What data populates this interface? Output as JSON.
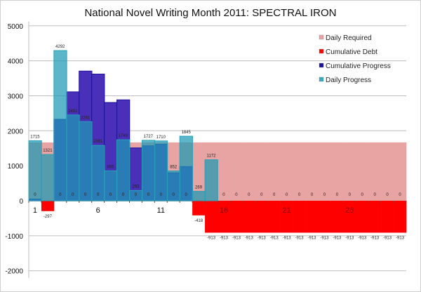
{
  "chart_data": {
    "type": "bar",
    "title": "National Novel Writing Month 2011: SPECTRAL IRON",
    "xlabel": "",
    "ylabel": "",
    "ylim": [
      -2000,
      5000
    ],
    "yticks": [
      -2000,
      -1000,
      0,
      1000,
      2000,
      3000,
      4000,
      5000
    ],
    "grid": true,
    "legend_position": "top-right",
    "categories": [
      1,
      2,
      3,
      4,
      5,
      6,
      7,
      8,
      9,
      10,
      11,
      12,
      13,
      14,
      15,
      16,
      17,
      18,
      19,
      20,
      21,
      22,
      23,
      24,
      25,
      26,
      27,
      28,
      29,
      30
    ],
    "xtick_labels": [
      "1",
      "6",
      "11",
      "16",
      "21",
      "26"
    ],
    "series": [
      {
        "name": "Daily Required",
        "color": "#e8a3a3",
        "values": [
          1667,
          1667,
          1667,
          1667,
          1667,
          1667,
          1667,
          1667,
          1667,
          1667,
          1667,
          1667,
          1667,
          1667,
          1667,
          1667,
          1667,
          1667,
          1667,
          1667,
          1667,
          1667,
          1667,
          1667,
          1667,
          1667,
          1667,
          1667,
          1667,
          1667
        ]
      },
      {
        "name": "Cumulative Debt",
        "color": "#ff0000",
        "values": [
          0,
          -297,
          0,
          0,
          0,
          0,
          0,
          0,
          0,
          0,
          0,
          0,
          0,
          -418,
          -913,
          -913,
          -913,
          -913,
          -913,
          -913,
          -913,
          -913,
          -913,
          -913,
          -913,
          -913,
          -913,
          -913,
          -913,
          -913
        ]
      },
      {
        "name": "Cumulative Progress",
        "color": "#1a0f9a",
        "values": [
          48,
          0,
          2328,
          3112,
          3706,
          3620,
          2808,
          2884,
          1510,
          1570,
          1613,
          798,
          976,
          0,
          0,
          0,
          0,
          0,
          0,
          0,
          0,
          0,
          0,
          0,
          0,
          0,
          0,
          0,
          0,
          0
        ]
      },
      {
        "name": "Daily Progress",
        "color": "#3aaabb",
        "values": [
          1715,
          1321,
          4292,
          2451,
          2261,
          1581,
          855,
          1743,
          293,
          1727,
          1710,
          852,
          1845,
          269,
          1172,
          0,
          0,
          0,
          0,
          0,
          0,
          0,
          0,
          0,
          0,
          0,
          0,
          0,
          0,
          0
        ]
      }
    ]
  }
}
